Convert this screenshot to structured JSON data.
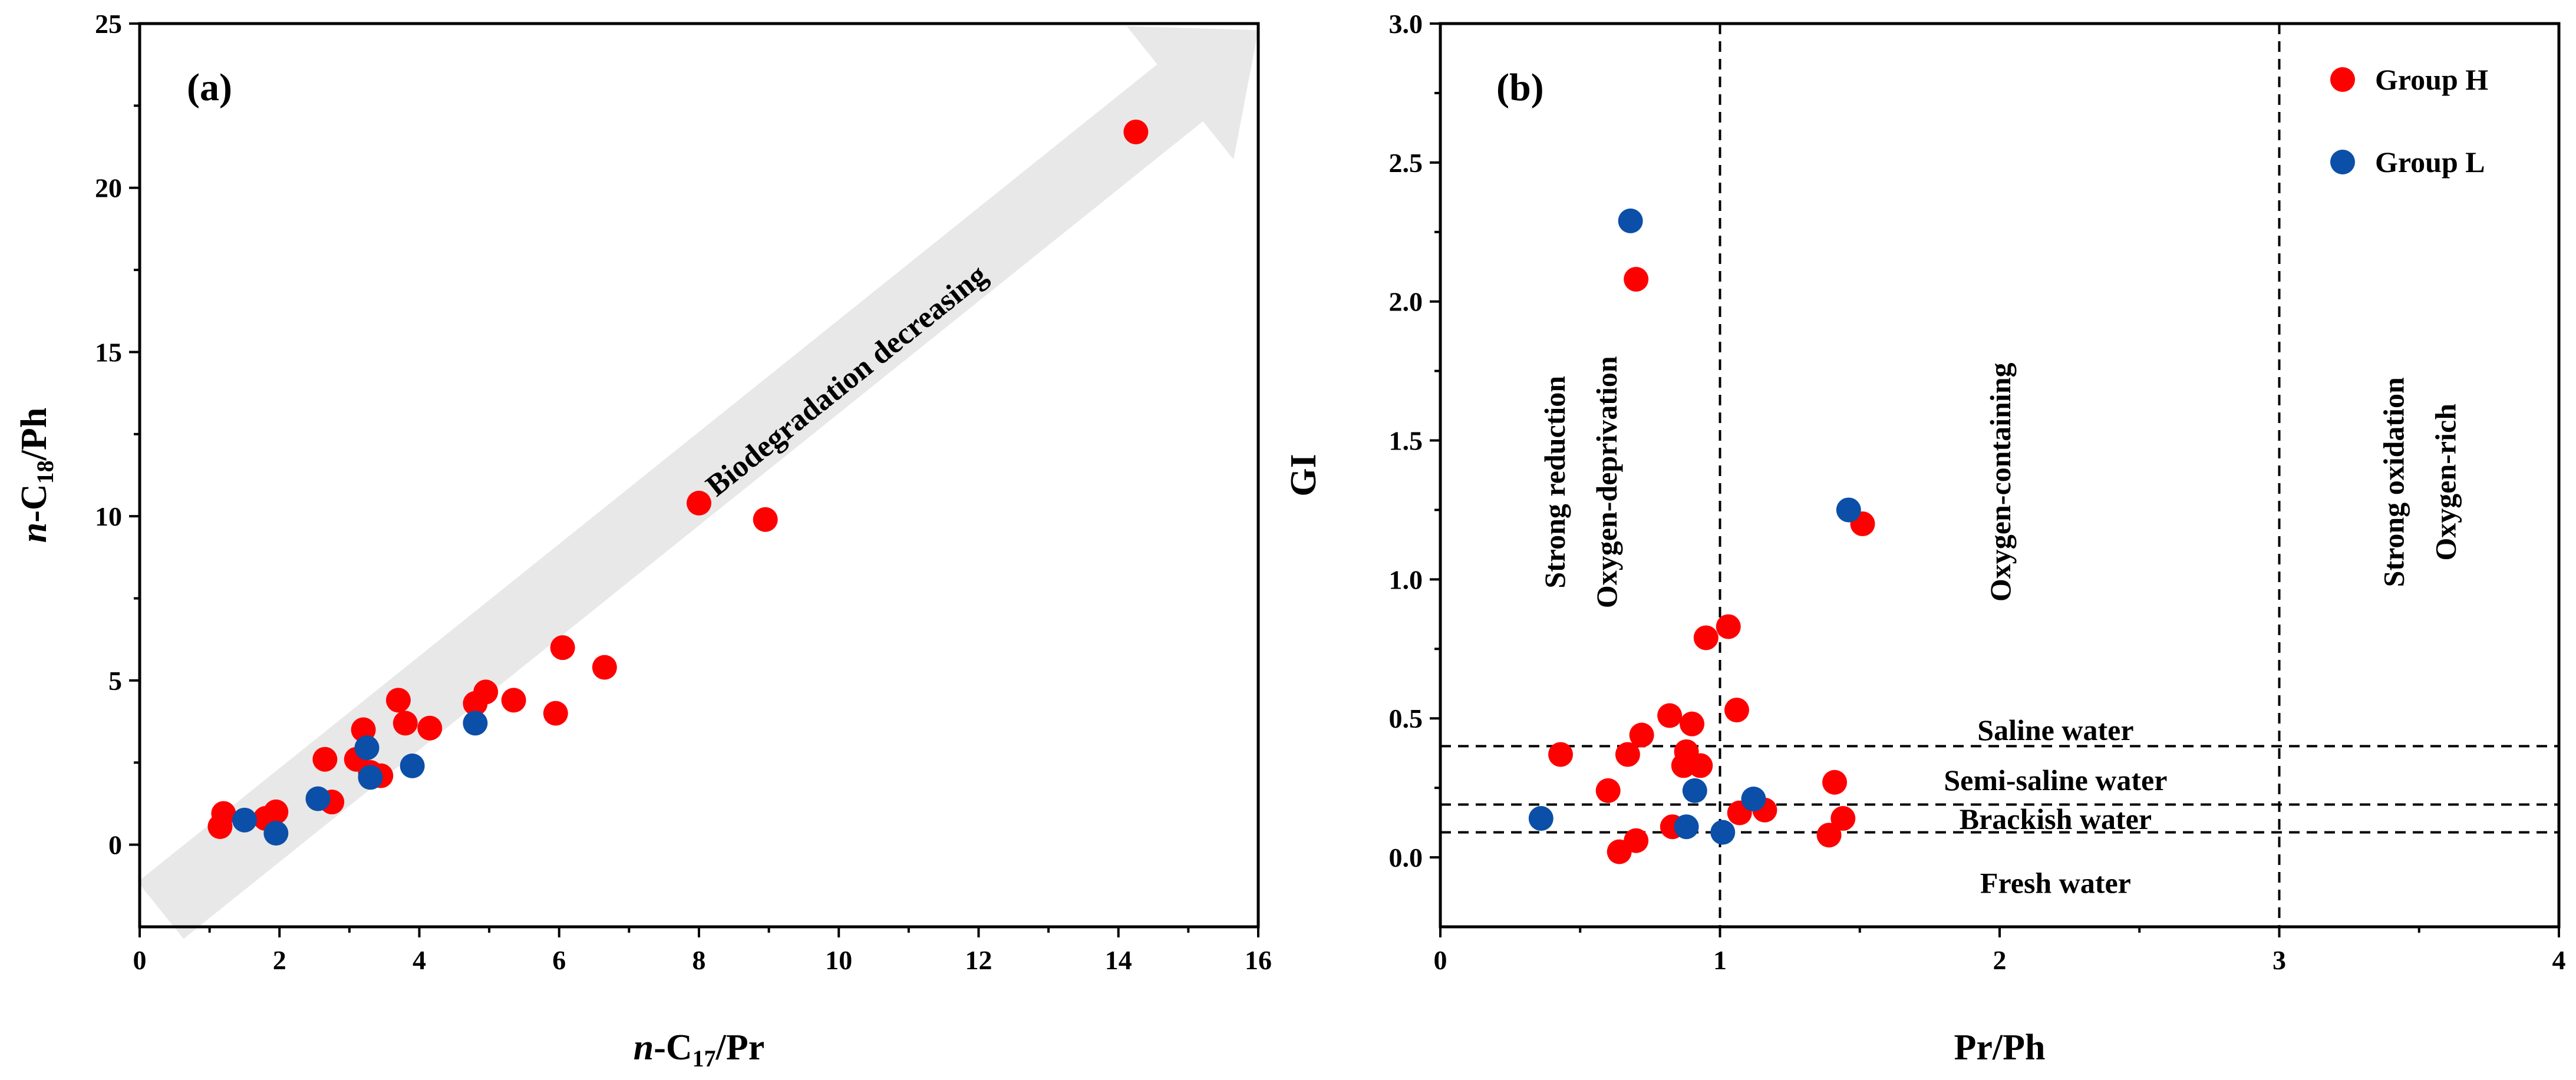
{
  "colors": {
    "group_h": "#ff0000",
    "group_l": "#0b4fa8",
    "arrow": "#e8e8e8"
  },
  "chart_data": [
    {
      "type": "scatter",
      "panel_label": "(a)",
      "xlabel": {
        "prefix": "n",
        "middle": "-C",
        "sub": "17",
        "suffix": "/Pr"
      },
      "ylabel": {
        "prefix": "n",
        "middle": "-C",
        "sub": "18",
        "suffix": "/Ph"
      },
      "xlim": [
        0,
        16
      ],
      "ylim": [
        -2.5,
        25
      ],
      "xticks": [
        0,
        2,
        4,
        6,
        8,
        10,
        12,
        14,
        16
      ],
      "yticks": [
        0,
        5,
        10,
        15,
        20,
        25
      ],
      "arrow": {
        "label": "Biodegradation decreasing",
        "from": [
          0.3,
          -2
        ],
        "to": [
          16,
          24.8
        ]
      },
      "series": [
        {
          "color_key": "group_h",
          "points": [
            [
              1.15,
              0.55
            ],
            [
              1.2,
              0.95
            ],
            [
              1.8,
              0.8
            ],
            [
              1.95,
              1.0
            ],
            [
              2.65,
              2.6
            ],
            [
              2.75,
              1.3
            ],
            [
              3.1,
              2.6
            ],
            [
              3.2,
              3.5
            ],
            [
              3.3,
              2.2
            ],
            [
              3.45,
              2.1
            ],
            [
              3.7,
              4.4
            ],
            [
              3.8,
              3.7
            ],
            [
              4.15,
              3.55
            ],
            [
              4.8,
              4.3
            ],
            [
              4.95,
              4.65
            ],
            [
              5.35,
              4.4
            ],
            [
              5.95,
              4.0
            ],
            [
              6.05,
              6.0
            ],
            [
              6.65,
              5.4
            ],
            [
              8.0,
              10.4
            ],
            [
              8.95,
              9.9
            ],
            [
              14.25,
              21.7
            ]
          ]
        },
        {
          "color_key": "group_l",
          "points": [
            [
              1.5,
              0.75
            ],
            [
              1.95,
              0.35
            ],
            [
              2.55,
              1.4
            ],
            [
              3.25,
              2.95
            ],
            [
              3.3,
              2.05
            ],
            [
              3.9,
              2.4
            ],
            [
              4.8,
              3.7
            ]
          ]
        }
      ]
    },
    {
      "type": "scatter",
      "panel_label": "(b)",
      "xlabel": "Pr/Ph",
      "ylabel": "GI",
      "xlim": [
        0,
        4
      ],
      "ylim": [
        -0.25,
        3.0
      ],
      "xticks": [
        0,
        1,
        2,
        3,
        4
      ],
      "yticks": [
        0.0,
        0.5,
        1.0,
        1.5,
        2.0,
        2.5,
        3.0
      ],
      "ytick_labels": [
        "0.0",
        "0.5",
        "1.0",
        "1.5",
        "2.0",
        "2.5",
        "3.0"
      ],
      "vlines": [
        1,
        3
      ],
      "hlines": [
        0.4,
        0.19,
        0.09
      ],
      "water_labels": [
        {
          "text": "Saline water",
          "x": 2.2,
          "y": 0.46
        },
        {
          "text": "Semi-saline water",
          "x": 2.2,
          "y": 0.28
        },
        {
          "text": "Brackish water",
          "x": 2.2,
          "y": 0.14
        },
        {
          "text": "Fresh water",
          "x": 2.2,
          "y": -0.09
        }
      ],
      "zone_labels": [
        {
          "lines": [
            "Strong reduction",
            "Oxygen-deprivation"
          ],
          "x": 0.5,
          "y": 1.35
        },
        {
          "lines": [
            "Oxygen-containing"
          ],
          "x": 2.0,
          "y": 1.35
        },
        {
          "lines": [
            "Strong oxidation",
            "Oxygen-rich"
          ],
          "x": 3.5,
          "y": 1.35
        }
      ],
      "legend": {
        "position": "top-right",
        "items": [
          {
            "name": "Group H",
            "color_key": "group_h"
          },
          {
            "name": "Group L",
            "color_key": "group_l"
          }
        ]
      },
      "series": [
        {
          "name": "Group H",
          "color_key": "group_h",
          "points": [
            [
              0.7,
              2.08
            ],
            [
              0.43,
              0.37
            ],
            [
              0.6,
              0.24
            ],
            [
              0.64,
              0.02
            ],
            [
              0.67,
              0.37
            ],
            [
              0.7,
              0.06
            ],
            [
              0.72,
              0.44
            ],
            [
              0.82,
              0.51
            ],
            [
              0.83,
              0.11
            ],
            [
              0.87,
              0.33
            ],
            [
              0.88,
              0.38
            ],
            [
              0.9,
              0.48
            ],
            [
              0.93,
              0.33
            ],
            [
              0.95,
              0.79
            ],
            [
              1.03,
              0.83
            ],
            [
              1.06,
              0.53
            ],
            [
              1.07,
              0.16
            ],
            [
              1.16,
              0.17
            ],
            [
              1.39,
              0.08
            ],
            [
              1.41,
              0.27
            ],
            [
              1.44,
              0.14
            ],
            [
              1.51,
              1.2
            ]
          ]
        },
        {
          "name": "Group L",
          "color_key": "group_l",
          "points": [
            [
              0.68,
              2.29
            ],
            [
              0.36,
              0.14
            ],
            [
              0.88,
              0.11
            ],
            [
              0.91,
              0.24
            ],
            [
              1.01,
              0.09
            ],
            [
              1.12,
              0.21
            ],
            [
              1.46,
              1.25
            ]
          ]
        }
      ]
    }
  ]
}
